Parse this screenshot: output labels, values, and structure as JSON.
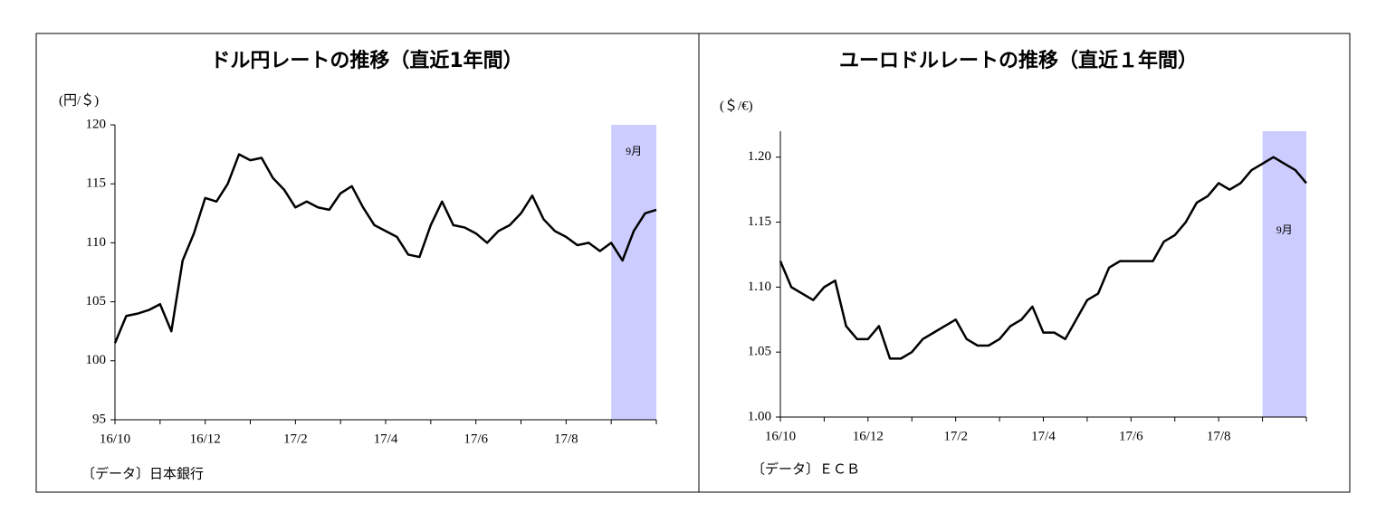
{
  "chart_data": [
    {
      "type": "line",
      "title": "ドル円レートの推移（直近1年間）",
      "y_label": "(円/＄)",
      "source": "〔データ〕日本銀行",
      "categories": [
        "16/10",
        null,
        null,
        null,
        null,
        null,
        null,
        null,
        "16/12",
        null,
        null,
        null,
        null,
        null,
        null,
        null,
        "17/2",
        null,
        null,
        null,
        null,
        null,
        null,
        null,
        "17/4",
        null,
        null,
        null,
        null,
        null,
        null,
        null,
        "17/6",
        null,
        null,
        null,
        null,
        null,
        null,
        null,
        "17/8",
        null,
        null,
        null,
        null,
        null,
        null,
        null,
        null
      ],
      "series": [
        {
          "name": "ドル円",
          "color": "#000000",
          "values": [
            101.5,
            103.8,
            104.0,
            104.3,
            104.8,
            102.5,
            108.5,
            110.8,
            113.8,
            113.5,
            115.0,
            117.5,
            117.0,
            117.2,
            115.5,
            114.5,
            113.0,
            113.5,
            113.0,
            112.8,
            114.2,
            114.8,
            113.0,
            111.5,
            111.0,
            110.5,
            109.0,
            108.8,
            111.5,
            113.5,
            111.5,
            111.3,
            110.8,
            110.0,
            111.0,
            111.5,
            112.5,
            114.0,
            112.0,
            111.0,
            110.5,
            109.8,
            110.0,
            109.3,
            110.0,
            108.5,
            111.0,
            112.5,
            112.8
          ]
        }
      ],
      "highlight": {
        "label": "9月",
        "color": "#ccccff"
      },
      "ylim": [
        95,
        120
      ],
      "yticks": [
        95,
        100,
        105,
        110,
        115,
        120
      ]
    },
    {
      "type": "line",
      "title": "ユーロドルレートの推移（直近１年間）",
      "y_label": "(＄/€)",
      "source": "〔データ〕ＥＣＢ",
      "categories": [
        "16/10",
        null,
        null,
        null,
        null,
        null,
        null,
        null,
        "16/12",
        null,
        null,
        null,
        null,
        null,
        null,
        null,
        "17/2",
        null,
        null,
        null,
        null,
        null,
        null,
        null,
        "17/4",
        null,
        null,
        null,
        null,
        null,
        null,
        null,
        "17/6",
        null,
        null,
        null,
        null,
        null,
        null,
        null,
        "17/8",
        null,
        null,
        null,
        null,
        null,
        null,
        null,
        null
      ],
      "series": [
        {
          "name": "ユーロドル",
          "color": "#000000",
          "values": [
            1.12,
            1.1,
            1.095,
            1.09,
            1.1,
            1.105,
            1.07,
            1.06,
            1.06,
            1.07,
            1.045,
            1.045,
            1.05,
            1.06,
            1.065,
            1.07,
            1.075,
            1.06,
            1.055,
            1.055,
            1.06,
            1.07,
            1.075,
            1.085,
            1.065,
            1.065,
            1.06,
            1.075,
            1.09,
            1.095,
            1.115,
            1.12,
            1.12,
            1.12,
            1.12,
            1.135,
            1.14,
            1.15,
            1.165,
            1.17,
            1.18,
            1.175,
            1.18,
            1.19,
            1.195,
            1.2,
            1.195,
            1.19,
            1.18
          ]
        }
      ],
      "highlight": {
        "label": "9月",
        "color": "#ccccff"
      },
      "ylim": [
        1.0,
        1.22
      ],
      "yticks": [
        {
          "value": 1.0,
          "label": "1.00"
        },
        {
          "value": 1.05,
          "label": "1.05"
        },
        {
          "value": 1.1,
          "label": "1.10"
        },
        {
          "value": 1.15,
          "label": "1.15"
        },
        {
          "value": 1.2,
          "label": "1.20"
        }
      ]
    }
  ]
}
